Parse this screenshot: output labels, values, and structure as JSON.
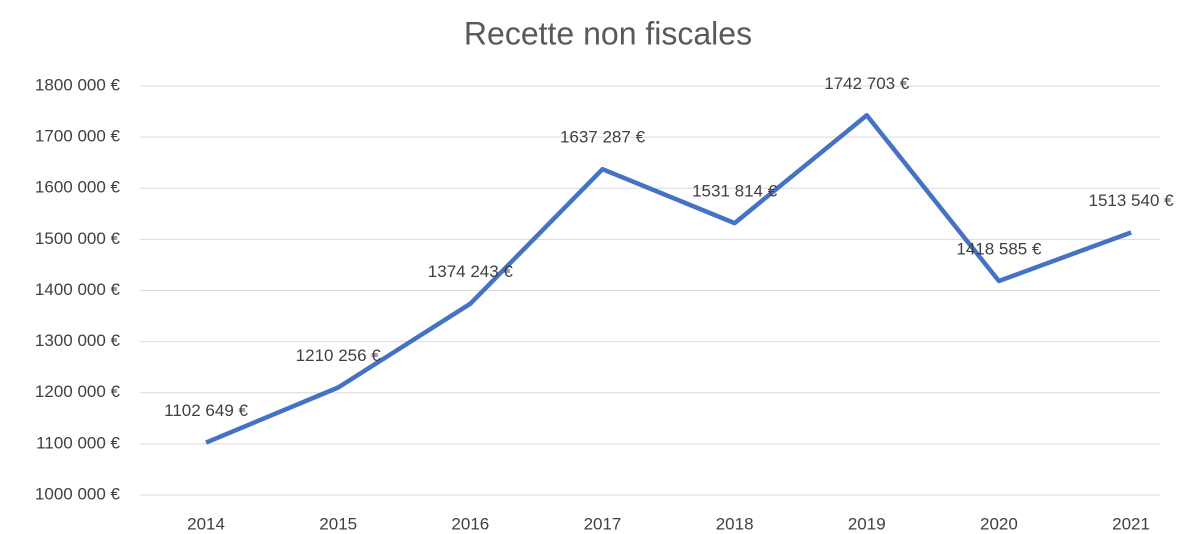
{
  "chart_data": {
    "type": "line",
    "title": "Recette non fiscales",
    "categories": [
      "2014",
      "2015",
      "2016",
      "2017",
      "2018",
      "2019",
      "2020",
      "2021"
    ],
    "series": [
      {
        "name": "Recette non fiscales",
        "color": "#4472c4",
        "values": [
          1102649,
          1210256,
          1374243,
          1637287,
          1531814,
          1742703,
          1418585,
          1513540
        ],
        "value_labels": [
          "1102 649 €",
          "1210 256 €",
          "1374 243 €",
          "1637 287 €",
          "1531 814 €",
          "1742 703 €",
          "1418 585 €",
          "1513 540 €"
        ]
      }
    ],
    "ylim": [
      1000000,
      1800000
    ],
    "yticks": [
      {
        "value": 1000000,
        "label": "1000 000 €"
      },
      {
        "value": 1100000,
        "label": "1100 000 €"
      },
      {
        "value": 1200000,
        "label": "1200 000 €"
      },
      {
        "value": 1300000,
        "label": "1300 000 €"
      },
      {
        "value": 1400000,
        "label": "1400 000 €"
      },
      {
        "value": 1500000,
        "label": "1500 000 €"
      },
      {
        "value": 1600000,
        "label": "1600 000 €"
      },
      {
        "value": 1700000,
        "label": "1700 000 €"
      },
      {
        "value": 1800000,
        "label": "1800 000 €"
      }
    ],
    "grid": true
  }
}
